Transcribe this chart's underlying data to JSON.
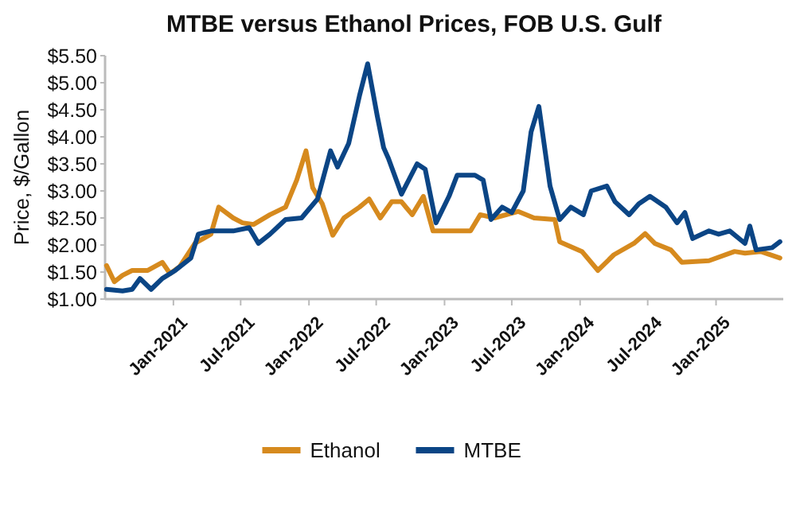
{
  "chart_data": {
    "type": "line",
    "title": "MTBE versus Ethanol Prices, FOB U.S. Gulf",
    "ylabel": "Price, $/Gallon",
    "xlim": [
      "2020-07-01",
      "2025-07-01"
    ],
    "xticks": [
      {
        "value": "2021-01-01",
        "label": "Jan-2021"
      },
      {
        "value": "2021-07-01",
        "label": "Jul-2021"
      },
      {
        "value": "2022-01-01",
        "label": "Jan-2022"
      },
      {
        "value": "2022-07-01",
        "label": "Jul-2022"
      },
      {
        "value": "2023-01-01",
        "label": "Jan-2023"
      },
      {
        "value": "2023-07-01",
        "label": "Jul-2023"
      },
      {
        "value": "2024-01-01",
        "label": "Jan-2024"
      },
      {
        "value": "2024-07-01",
        "label": "Jul-2024"
      },
      {
        "value": "2025-01-01",
        "label": "Jan-2025"
      }
    ],
    "ylim": [
      1,
      5.5
    ],
    "yticks": [
      {
        "value": 1,
        "label": "$1.00"
      },
      {
        "value": 1.5,
        "label": "$1.50"
      },
      {
        "value": 2,
        "label": "$2.00"
      },
      {
        "value": 2.5,
        "label": "$2.50"
      },
      {
        "value": 3,
        "label": "$3.00"
      },
      {
        "value": 3.5,
        "label": "$3.50"
      },
      {
        "value": 4,
        "label": "$4.00"
      },
      {
        "value": 4.5,
        "label": "$4.50"
      },
      {
        "value": 5,
        "label": "$5.00"
      },
      {
        "value": 5.5,
        "label": "$5.50"
      }
    ],
    "grid": false,
    "legend": "bottom",
    "marker": "none",
    "line_style": "solid",
    "series": [
      {
        "name": "Ethanol",
        "color": "#d68a1e",
        "x": [
          "2020-07-05",
          "2020-07-26",
          "2020-08-17",
          "2020-09-12",
          "2020-10-24",
          "2020-12-02",
          "2020-12-23",
          "2021-01-18",
          "2021-02-28",
          "2021-04-12",
          "2021-05-03",
          "2021-06-11",
          "2021-07-06",
          "2021-08-05",
          "2021-09-18",
          "2021-10-30",
          "2021-11-29",
          "2021-12-24",
          "2022-01-11",
          "2022-02-06",
          "2022-03-06",
          "2022-04-05",
          "2022-05-17",
          "2022-06-12",
          "2022-07-12",
          "2022-08-12",
          "2022-09-07",
          "2022-10-06",
          "2022-11-05",
          "2022-12-01",
          "2023-01-13",
          "2023-03-12",
          "2023-04-07",
          "2023-05-15",
          "2023-07-18",
          "2023-08-30",
          "2023-10-25",
          "2023-11-07",
          "2024-01-06",
          "2024-02-18",
          "2024-04-01",
          "2024-05-25",
          "2024-06-24",
          "2024-07-20",
          "2024-09-01",
          "2024-10-01",
          "2024-12-13",
          "2025-02-20",
          "2025-03-20",
          "2025-05-01",
          "2025-06-22"
        ],
        "values": [
          1.62,
          1.32,
          1.44,
          1.53,
          1.53,
          1.68,
          1.47,
          1.6,
          2.03,
          2.2,
          2.7,
          2.5,
          2.41,
          2.38,
          2.56,
          2.7,
          3.2,
          3.74,
          3.06,
          2.76,
          2.18,
          2.5,
          2.7,
          2.85,
          2.5,
          2.8,
          2.8,
          2.56,
          2.9,
          2.26,
          2.26,
          2.26,
          2.56,
          2.5,
          2.62,
          2.5,
          2.47,
          2.06,
          1.88,
          1.53,
          1.82,
          2.03,
          2.21,
          2.03,
          1.91,
          1.68,
          1.71,
          1.88,
          1.85,
          1.88,
          1.76
        ]
      },
      {
        "name": "MTBE",
        "color": "#0b4585",
        "x": [
          "2020-07-05",
          "2020-08-17",
          "2020-09-12",
          "2020-10-03",
          "2020-11-02",
          "2020-12-02",
          "2021-01-06",
          "2021-02-17",
          "2021-03-09",
          "2021-04-12",
          "2021-06-11",
          "2021-07-24",
          "2021-08-18",
          "2021-09-18",
          "2021-10-30",
          "2021-12-12",
          "2022-01-24",
          "2022-02-28",
          "2022-03-19",
          "2022-04-18",
          "2022-05-17",
          "2022-06-08",
          "2022-07-04",
          "2022-07-21",
          "2022-08-03",
          "2022-09-07",
          "2022-10-19",
          "2022-11-10",
          "2022-12-09",
          "2023-01-13",
          "2023-02-04",
          "2023-03-24",
          "2023-04-15",
          "2023-05-06",
          "2023-06-05",
          "2023-07-01",
          "2023-08-01",
          "2023-08-22",
          "2023-09-12",
          "2023-10-12",
          "2023-11-07",
          "2023-12-07",
          "2024-01-10",
          "2024-01-31",
          "2024-03-13",
          "2024-04-04",
          "2024-05-12",
          "2024-06-07",
          "2024-07-07",
          "2024-08-19",
          "2024-09-18",
          "2024-10-09",
          "2024-10-30",
          "2024-12-13",
          "2025-01-08",
          "2025-02-07",
          "2025-03-20",
          "2025-04-02",
          "2025-04-19",
          "2025-06-01",
          "2025-06-22"
        ],
        "values": [
          1.18,
          1.15,
          1.18,
          1.38,
          1.18,
          1.38,
          1.53,
          1.76,
          2.2,
          2.26,
          2.26,
          2.32,
          2.03,
          2.2,
          2.47,
          2.5,
          2.85,
          3.74,
          3.44,
          3.88,
          4.76,
          5.35,
          4.38,
          3.8,
          3.6,
          2.94,
          3.5,
          3.4,
          2.41,
          2.9,
          3.29,
          3.29,
          3.2,
          2.47,
          2.7,
          2.6,
          3.0,
          4.09,
          4.56,
          3.09,
          2.47,
          2.7,
          2.56,
          3.0,
          3.09,
          2.8,
          2.56,
          2.76,
          2.9,
          2.7,
          2.41,
          2.6,
          2.12,
          2.26,
          2.2,
          2.26,
          2.03,
          2.35,
          1.91,
          1.95,
          2.06
        ]
      }
    ]
  }
}
